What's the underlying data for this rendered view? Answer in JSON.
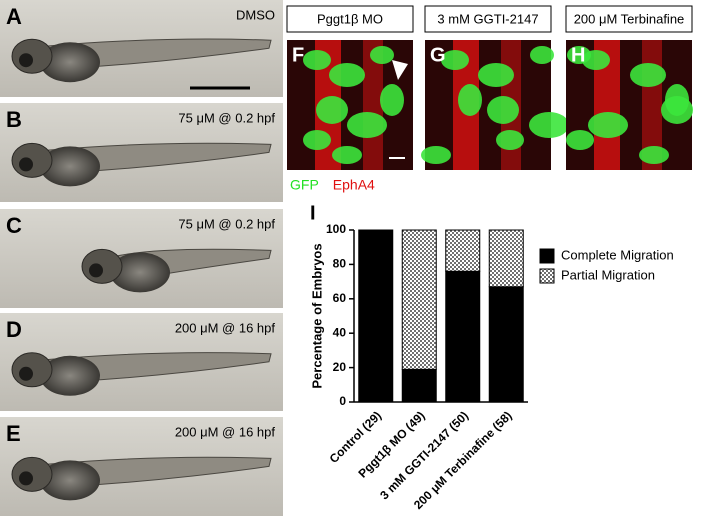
{
  "panels": [
    {
      "label": "A",
      "caption": "DMSO"
    },
    {
      "label": "B",
      "caption": "75 μM @ 0.2 hpf"
    },
    {
      "label": "C",
      "caption": "75 μM @ 0.2 hpf"
    },
    {
      "label": "D",
      "caption": "200 μM @ 16 hpf"
    },
    {
      "label": "E",
      "caption": "200 μM @ 16 hpf"
    }
  ],
  "fluorescence_panels": [
    {
      "label": "F",
      "header": "Pggt1β MO"
    },
    {
      "label": "G",
      "header": "3 mM GGTI-2147"
    },
    {
      "label": "H",
      "header": "200 μM Terbinafine"
    }
  ],
  "channels": [
    {
      "name": "GFP",
      "color": "#22e022"
    },
    {
      "name": "EphA4",
      "color": "#e01010"
    }
  ],
  "chart_data": {
    "type": "bar",
    "stacked": true,
    "label": "I",
    "y_label": "Percentage of Embryos",
    "categories": [
      "Control (29)",
      "Pggt1β MO (49)",
      "3 mM GGTI-2147 (50)",
      "200 μM Terbinafine (58)"
    ],
    "series": [
      {
        "name": "Complete Migration",
        "color": "#000000",
        "values": [
          100,
          19,
          76,
          67
        ]
      },
      {
        "name": "Partial Migration",
        "color": "#707070",
        "values": [
          0,
          81,
          24,
          33
        ]
      }
    ],
    "ylim": [
      0,
      100
    ],
    "yticks": [
      0,
      20,
      40,
      60,
      80,
      100
    ]
  }
}
